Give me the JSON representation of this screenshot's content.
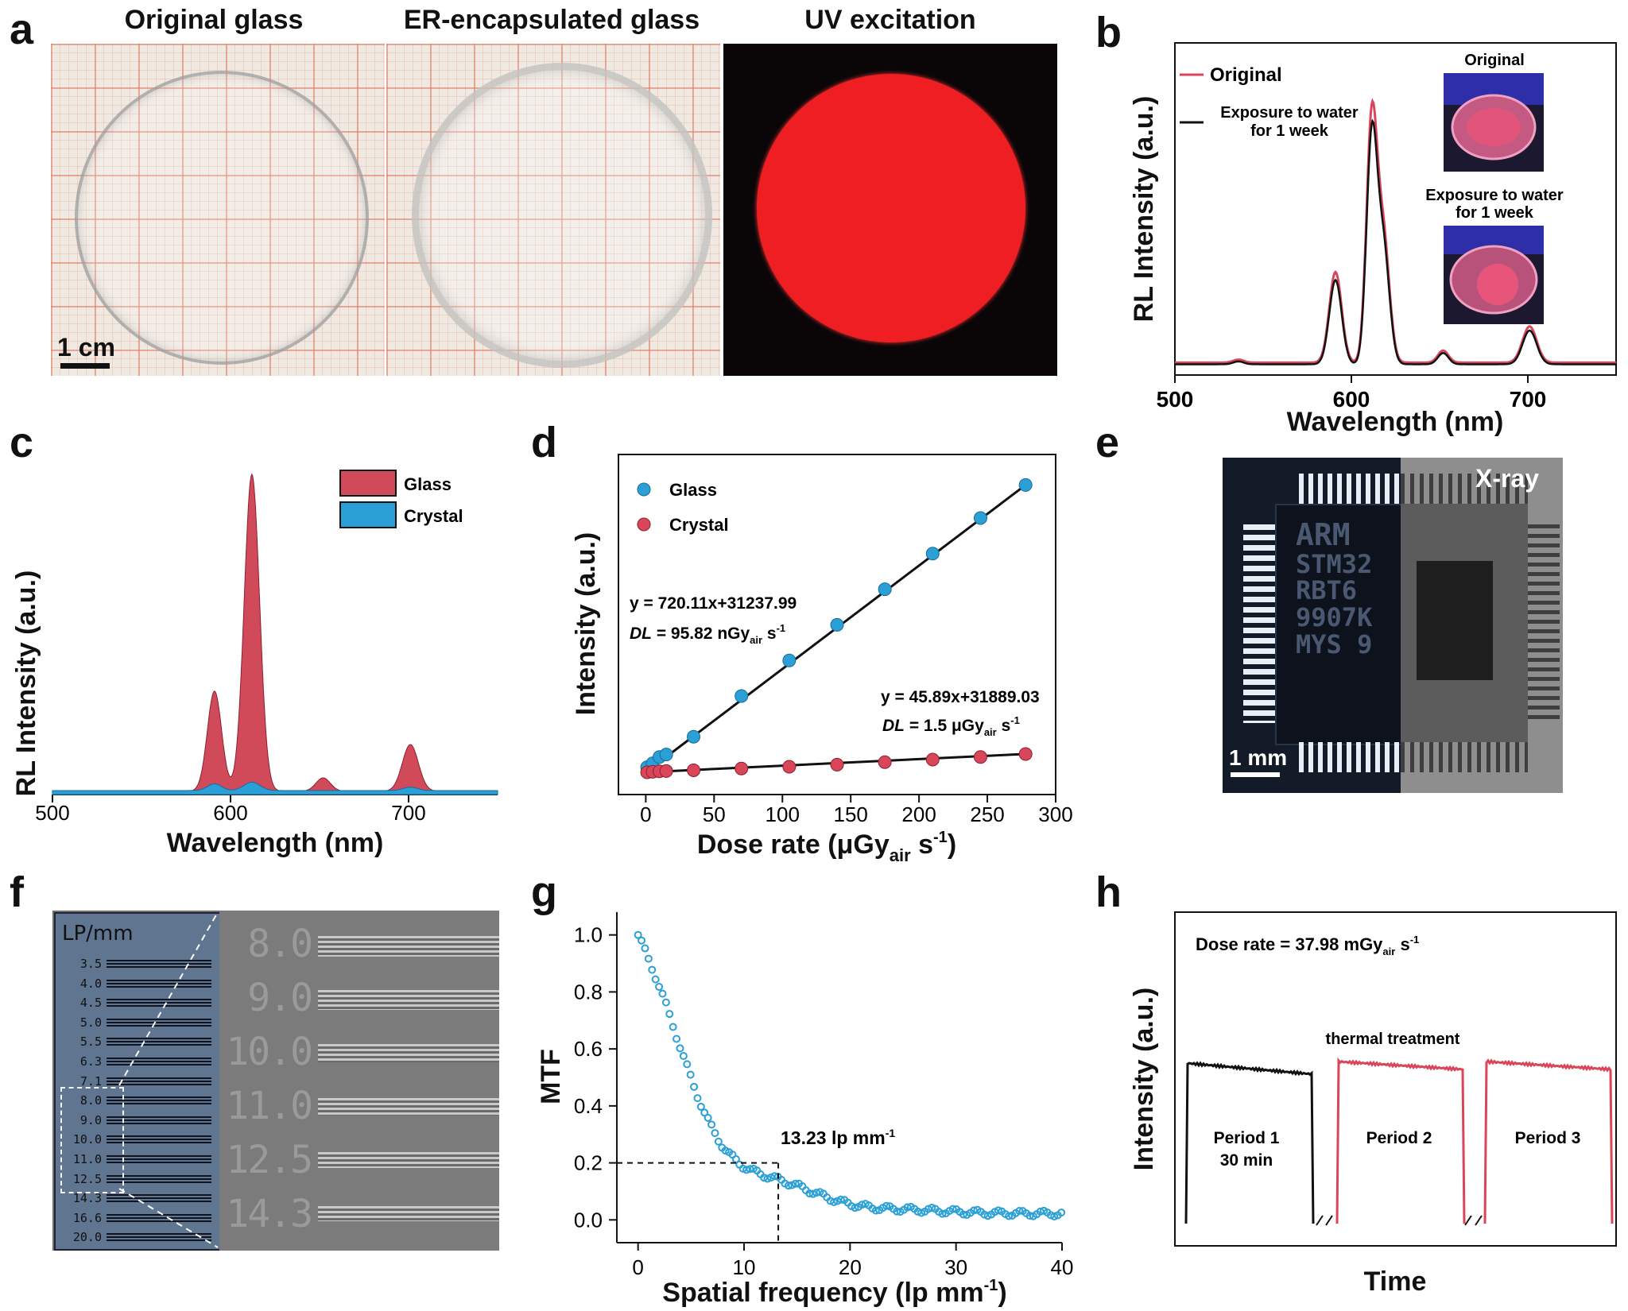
{
  "panel_letters": {
    "a": "a",
    "b": "b",
    "c": "c",
    "d": "d",
    "e": "e",
    "f": "f",
    "g": "g",
    "h": "h"
  },
  "panel_a": {
    "titles": [
      "Original glass",
      "ER-encapsulated glass",
      "UV excitation"
    ],
    "scale_bar": "1 cm"
  },
  "panel_b": {
    "chart_data": {
      "type": "line",
      "xlabel": "Wavelength (nm)",
      "ylabel": "RL Intensity (a.u.)",
      "xlim": [
        500,
        750
      ],
      "xticks": [
        500,
        600,
        700
      ],
      "series": [
        {
          "name": "Original",
          "color": "#d9465a"
        },
        {
          "name": "Exposure to water for 1 week",
          "color": "#111111"
        }
      ],
      "peaks_nm": [
        536,
        591,
        612,
        652,
        701
      ],
      "legend": [
        "Original",
        "Exposure to water",
        "for 1 week"
      ]
    },
    "inset_labels": {
      "top": "Original",
      "bottom_line1": "Exposure to water",
      "bottom_line2": "for 1 week"
    }
  },
  "panel_c": {
    "chart_data": {
      "type": "area",
      "xlabel": "Wavelength (nm)",
      "ylabel": "RL Intensity (a.u.)",
      "xlim": [
        500,
        750
      ],
      "xticks": [
        500,
        600,
        700
      ],
      "series": [
        {
          "name": "Glass",
          "color": "#d14a5a"
        },
        {
          "name": "Crystal",
          "color": "#2aa0d6"
        }
      ]
    }
  },
  "panel_d": {
    "chart_data": {
      "type": "scatter",
      "xlabel": "Dose rate (μGy",
      "xlabel_sub": "air",
      "xlabel_end": " s",
      "xlabel_sup": "-1",
      "xlabel_close": ")",
      "ylabel": "Intensity (a.u.)",
      "xlim": [
        -20,
        300
      ],
      "xticks": [
        0,
        50,
        100,
        150,
        200,
        250,
        300
      ],
      "series": [
        {
          "name": "Glass",
          "color": "#2aa0d6",
          "x": [
            1,
            5,
            10,
            15,
            35,
            70,
            105,
            140,
            175,
            210,
            245,
            278
          ],
          "y_rel": [
            0.02,
            0.035,
            0.06,
            0.07,
            0.14,
            0.3,
            0.44,
            0.58,
            0.72,
            0.86,
            1.0,
            1.13
          ]
        },
        {
          "name": "Crystal",
          "color": "#d9465a",
          "x": [
            1,
            5,
            10,
            15,
            35,
            70,
            105,
            140,
            175,
            210,
            245,
            278
          ],
          "y_rel": [
            0.0,
            0.002,
            0.004,
            0.005,
            0.008,
            0.015,
            0.022,
            0.03,
            0.04,
            0.05,
            0.06,
            0.072
          ]
        }
      ],
      "annotations": {
        "glass_eq": "y = 720.11x+31237.99",
        "glass_dl_pre": "DL",
        "glass_dl_val": " = 95.82 nGy",
        "glass_dl_sub": "air",
        "glass_dl_end": " s",
        "glass_dl_sup": "-1",
        "crystal_eq": "y = 45.89x+31889.03",
        "crystal_dl_pre": "DL",
        "crystal_dl_val": " = 1.5 μGy",
        "crystal_dl_sub": "air",
        "crystal_dl_end": " s",
        "crystal_dl_sup": "-1"
      }
    }
  },
  "panel_e": {
    "xray_label": "X-ray",
    "scale_bar": "1 mm",
    "chip_text": [
      "ARM",
      "STM32",
      "RBT6",
      "9907K",
      "MYS 9"
    ]
  },
  "panel_f": {
    "header": "LP/mm",
    "values": [
      "3.5",
      "4.0",
      "4.5",
      "5.0",
      "5.5",
      "6.3",
      "7.1",
      "8.0",
      "9.0",
      "10.0",
      "11.0",
      "12.5",
      "14.3",
      "16.6",
      "20.0"
    ],
    "zoom_values": [
      "8.0",
      "9.0",
      "10.0",
      "11.0",
      "12.5",
      "14.3"
    ]
  },
  "panel_g": {
    "chart_data": {
      "type": "scatter",
      "xlabel": "Spatial frequency (lp mm",
      "xlabel_sup": "-1",
      "xlabel_close": ")",
      "ylabel": "MTF",
      "xlim": [
        -2,
        40
      ],
      "ylim": [
        -0.08,
        1.08
      ],
      "xticks": [
        0,
        10,
        20,
        30,
        40
      ],
      "yticks": [
        "0.0",
        "0.2",
        "0.4",
        "0.6",
        "0.8",
        "1.0"
      ],
      "annotation": "13.23 lp mm",
      "annotation_sup": "-1",
      "mtf20_x": 13.23,
      "color": "#2aa0d6"
    }
  },
  "panel_h": {
    "chart_data": {
      "type": "line",
      "xlabel": "Time",
      "ylabel": "Intensity (a.u.)",
      "dose_text": "Dose rate = 37.98 mGy",
      "dose_sub": "air",
      "dose_end": " s",
      "dose_sup": "-1",
      "treatment": "thermal treatment",
      "periods": [
        {
          "line1": "Period 1",
          "line2": "30 min",
          "color": "#111111"
        },
        {
          "line1": "Period 2",
          "line2": "",
          "color": "#d9465a"
        },
        {
          "line1": "Period 3",
          "line2": "",
          "color": "#d9465a"
        }
      ]
    }
  }
}
